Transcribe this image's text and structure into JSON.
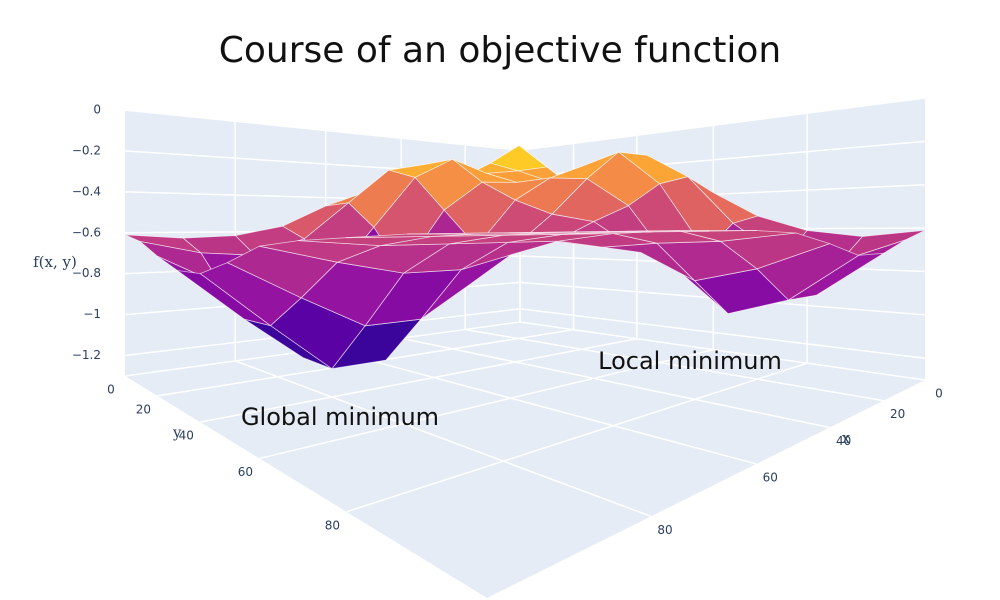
{
  "chart_data": {
    "type": "surface",
    "title": "Course of an objective function",
    "x": [
      0,
      10,
      20,
      30,
      40,
      50,
      60,
      70,
      80,
      90,
      100
    ],
    "y": [
      0,
      10,
      20,
      30,
      40,
      50,
      60,
      70,
      80,
      90,
      100
    ],
    "z": [
      [
        -0.39,
        -0.25,
        -0.32,
        -0.38,
        -0.35,
        -0.36,
        -0.45,
        -0.57,
        -0.62,
        -0.63,
        -0.61
      ],
      [
        -0.26,
        -0.01,
        -0.15,
        -0.27,
        -0.19,
        -0.24,
        -0.44,
        -0.64,
        -0.72,
        -0.7,
        -0.64
      ],
      [
        -0.35,
        -0.18,
        -0.22,
        -0.25,
        -0.18,
        -0.3,
        -0.58,
        -0.86,
        -0.94,
        -0.84,
        -0.7
      ],
      [
        -0.48,
        -0.35,
        -0.3,
        -0.32,
        -0.33,
        -0.49,
        -0.8,
        -1.11,
        -1.17,
        -0.97,
        -0.75
      ],
      [
        -0.38,
        -0.26,
        -0.23,
        -0.31,
        -0.44,
        -0.68,
        -0.94,
        -1.18,
        -1.18,
        -0.97,
        -0.75
      ],
      [
        -0.33,
        -0.17,
        -0.17,
        -0.33,
        -0.52,
        -0.68,
        -0.84,
        -0.97,
        -0.97,
        -0.84,
        -0.7
      ],
      [
        -0.39,
        -0.31,
        -0.36,
        -0.48,
        -0.56,
        -0.65,
        -0.7,
        -0.75,
        -0.75,
        -0.7,
        -0.64
      ],
      [
        -0.53,
        -0.57,
        -0.71,
        -0.78,
        -0.7,
        -0.67,
        -0.64,
        -0.64,
        -0.64,
        -0.64,
        -0.62
      ],
      [
        -0.61,
        -0.75,
        -0.95,
        -0.97,
        -0.81,
        -0.65,
        -0.61,
        -0.61,
        -0.61,
        -0.61,
        -0.61
      ],
      [
        -0.64,
        -0.75,
        -0.89,
        -0.89,
        -0.75,
        -0.64,
        -0.6,
        -0.6,
        -0.6,
        -0.6,
        -0.6
      ],
      [
        -0.61,
        -0.65,
        -0.7,
        -0.7,
        -0.65,
        -0.61,
        -0.6,
        -0.6,
        -0.6,
        -0.6,
        -0.6
      ]
    ],
    "colorscale": "Plasma",
    "xlim": [
      0,
      100
    ],
    "ylim": [
      0,
      100
    ],
    "zlim": [
      -1.3,
      0
    ],
    "xticks": [
      0,
      20,
      40,
      60,
      80
    ],
    "yticks": [
      0,
      20,
      40,
      60,
      80
    ],
    "zticks": [
      0,
      {
        "value": -0.2,
        "label": "−0.2"
      },
      {
        "value": -0.4,
        "label": "−0.4"
      },
      {
        "value": -0.6,
        "label": "−0.6"
      },
      {
        "value": -0.8,
        "label": "−0.8"
      },
      {
        "value": -1,
        "label": "−1"
      },
      {
        "value": -1.2,
        "label": "−1.2"
      }
    ],
    "xaxis_title": "x",
    "yaxis_title": "y",
    "zaxis_title": "f(x, y)",
    "annotations": [
      {
        "text": "Global minimum"
      },
      {
        "text": "Local minimum"
      }
    ]
  }
}
